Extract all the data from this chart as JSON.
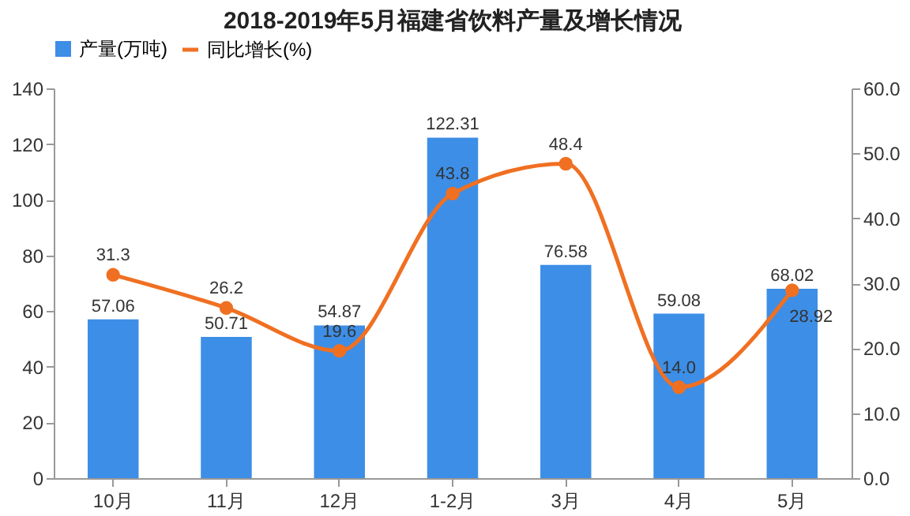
{
  "chart_data": {
    "type": "bar",
    "title": "2018-2019年5月福建省饮料产量及增长情况",
    "categories": [
      "10月",
      "11月",
      "12月",
      "1-2月",
      "3月",
      "4月",
      "5月"
    ],
    "series": [
      {
        "name": "产量(万吨)",
        "color": "#3d8ee6",
        "values": [
          57.06,
          50.71,
          54.87,
          122.31,
          76.58,
          59.08,
          68.02
        ],
        "value_labels": [
          "57.06",
          "50.71",
          "54.87",
          "122.31",
          "76.58",
          "59.08",
          "68.02"
        ]
      },
      {
        "name": "同比增长(%)",
        "type": "line",
        "axis": "y2",
        "color": "#f07022",
        "values": [
          31.3,
          26.2,
          19.6,
          43.8,
          48.4,
          14.0,
          28.92
        ],
        "value_labels": [
          "31.3",
          "26.2",
          "19.6",
          "43.8",
          "48.4",
          "14.0",
          "28.92"
        ]
      }
    ],
    "ylim": [
      0,
      140
    ],
    "yticks": [
      0,
      20,
      40,
      60,
      80,
      100,
      120,
      140
    ],
    "y2lim": [
      0,
      60
    ],
    "y2ticks": [
      {
        "value": 0,
        "label": "0.0"
      },
      {
        "value": 10,
        "label": "10.0"
      },
      {
        "value": 20,
        "label": "20.0"
      },
      {
        "value": 30,
        "label": "30.0"
      },
      {
        "value": 40,
        "label": "40.0"
      },
      {
        "value": 50,
        "label": "50.0"
      },
      {
        "value": 60,
        "label": "60.0"
      }
    ],
    "legend": "top",
    "marker": "circle",
    "grid": false
  }
}
